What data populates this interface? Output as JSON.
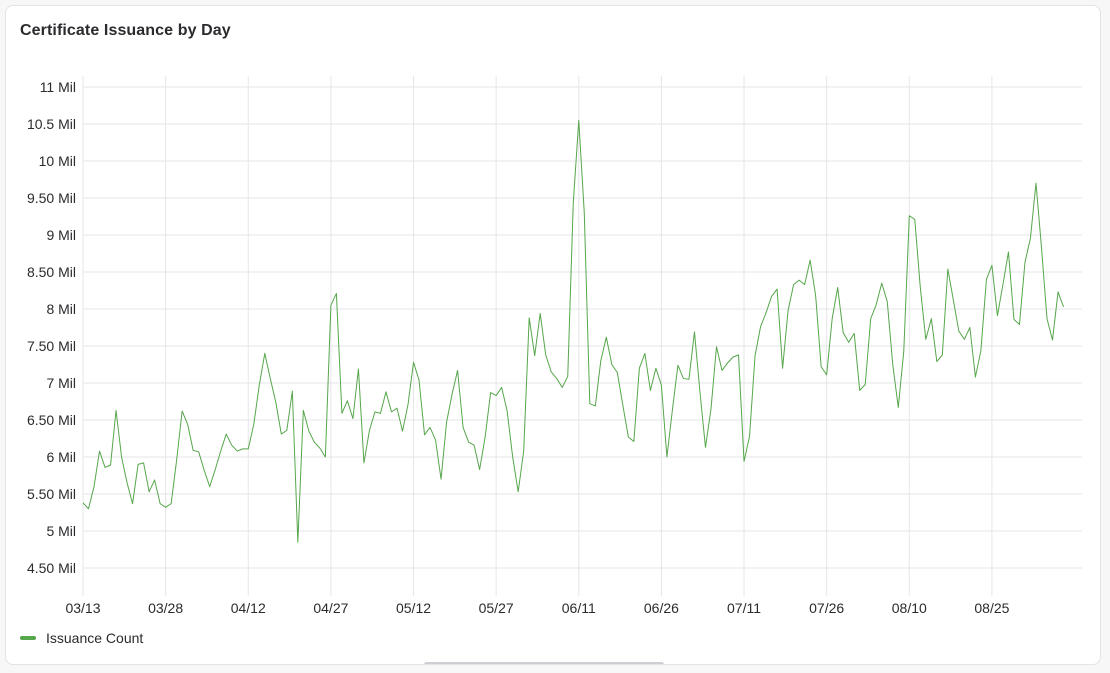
{
  "panel": {
    "title": "Certificate Issuance by Day"
  },
  "legend": {
    "label": "Issuance Count",
    "color": "#56a64b"
  },
  "chart_data": {
    "type": "line",
    "title": "Certificate Issuance by Day",
    "xlabel": "",
    "ylabel": "",
    "x_tick_labels": [
      "03/13",
      "03/28",
      "04/12",
      "04/27",
      "05/12",
      "05/27",
      "06/11",
      "06/26",
      "07/11",
      "07/26",
      "08/10",
      "08/25"
    ],
    "y_tick_labels": [
      "4.50 Mil",
      "5 Mil",
      "5.50 Mil",
      "6 Mil",
      "6.50 Mil",
      "7 Mil",
      "7.50 Mil",
      "8 Mil",
      "8.50 Mil",
      "9 Mil",
      "9.50 Mil",
      "10 Mil",
      "10.5 Mil",
      "11 Mil"
    ],
    "y_unit": "Mil",
    "ylim": [
      4.25,
      11.2
    ],
    "grid": true,
    "legend_position": "bottom-left",
    "series": [
      {
        "name": "Issuance Count",
        "color": "#56a64b",
        "values": [
          5.38,
          5.3,
          5.6,
          6.08,
          5.86,
          5.89,
          6.63,
          6.0,
          5.65,
          5.37,
          5.9,
          5.92,
          5.53,
          5.69,
          5.37,
          5.32,
          5.37,
          5.96,
          6.62,
          6.44,
          6.09,
          6.07,
          5.82,
          5.6,
          5.83,
          6.08,
          6.31,
          6.16,
          6.08,
          6.11,
          6.11,
          6.44,
          6.97,
          7.4,
          7.06,
          6.74,
          6.31,
          6.36,
          6.89,
          4.85,
          6.63,
          6.35,
          6.2,
          6.12,
          6.0,
          8.05,
          8.21,
          6.59,
          6.76,
          6.52,
          7.19,
          5.92,
          6.36,
          6.61,
          6.59,
          6.88,
          6.61,
          6.66,
          6.35,
          6.71,
          7.28,
          7.04,
          6.3,
          6.4,
          6.23,
          5.7,
          6.47,
          6.85,
          7.17,
          6.4,
          6.2,
          6.16,
          5.83,
          6.27,
          6.87,
          6.83,
          6.94,
          6.62,
          6.0,
          5.53,
          6.08,
          7.88,
          7.37,
          7.94,
          7.38,
          7.15,
          7.06,
          6.94,
          7.09,
          9.43,
          10.55,
          9.3,
          6.72,
          6.69,
          7.3,
          7.62,
          7.25,
          7.14,
          6.7,
          6.27,
          6.21,
          7.2,
          7.4,
          6.9,
          7.2,
          6.97,
          6.0,
          6.64,
          7.24,
          7.06,
          7.05,
          7.69,
          6.88,
          6.13,
          6.65,
          7.49,
          7.17,
          7.27,
          7.35,
          7.38,
          5.94,
          6.28,
          7.37,
          7.76,
          7.95,
          8.17,
          8.27,
          7.2,
          7.98,
          8.33,
          8.39,
          8.33,
          8.66,
          8.18,
          7.22,
          7.11,
          7.87,
          8.29,
          7.68,
          7.55,
          7.67,
          6.9,
          6.98,
          7.87,
          8.06,
          8.35,
          8.1,
          7.25,
          6.67,
          7.43,
          9.26,
          9.21,
          8.29,
          7.59,
          7.87,
          7.29,
          7.38,
          8.54,
          8.12,
          7.7,
          7.59,
          7.75,
          7.08,
          7.44,
          8.4,
          8.59,
          7.91,
          8.33,
          8.77,
          7.86,
          7.79,
          8.63,
          8.96,
          9.7,
          8.83,
          7.87,
          7.58,
          8.23,
          8.03
        ]
      }
    ]
  }
}
